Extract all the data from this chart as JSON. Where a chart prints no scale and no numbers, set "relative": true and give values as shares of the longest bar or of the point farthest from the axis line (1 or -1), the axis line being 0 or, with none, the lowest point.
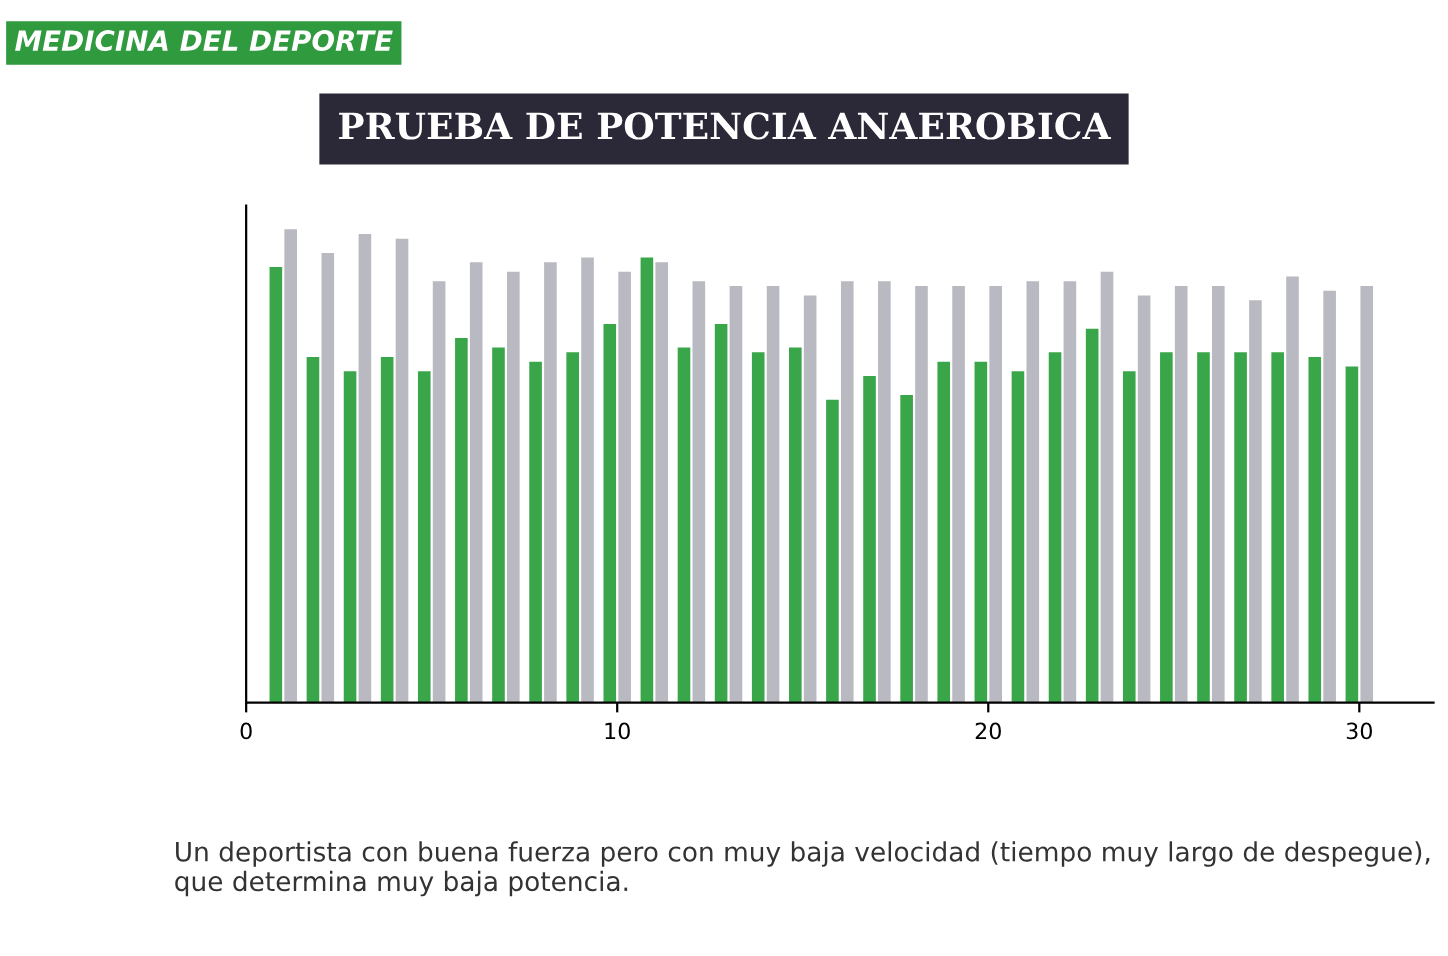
{
  "chart_data": {
    "type": "bar",
    "title": "PRUEBA DE POTENCIA ANAEROBICA",
    "subtitle": "MEDICINA DEL DEPORTE",
    "annotations": [
      "Un deportista con buena fuerza pero con muy baja velocidad (tiempo muy largo de despegue), que determina muy baja potencia."
    ],
    "relative": true,
    "x": [
      1,
      2,
      3,
      4,
      5,
      6,
      7,
      8,
      9,
      10,
      11,
      12,
      13,
      14,
      15,
      16,
      17,
      18,
      19,
      20,
      21,
      22,
      23,
      24,
      25,
      26,
      27,
      28,
      29,
      30
    ],
    "xlim": [
      0,
      32
    ],
    "xticks": [
      0,
      10,
      20,
      30
    ],
    "series": [
      {
        "color": "#3aa64a",
        "values": [
          0.92,
          0.73,
          0.7,
          0.73,
          0.7,
          0.77,
          0.75,
          0.72,
          0.74,
          0.8,
          0.94,
          0.75,
          0.8,
          0.74,
          0.75,
          0.64,
          0.69,
          0.65,
          0.72,
          0.72,
          0.7,
          0.74,
          0.79,
          0.7,
          0.74,
          0.74,
          0.74,
          0.74,
          0.73,
          0.71
        ]
      },
      {
        "color": "#b9b9c2",
        "values": [
          1.0,
          0.95,
          0.99,
          0.98,
          0.89,
          0.93,
          0.91,
          0.93,
          0.94,
          0.91,
          0.93,
          0.89,
          0.88,
          0.88,
          0.86,
          0.89,
          0.89,
          0.88,
          0.88,
          0.88,
          0.89,
          0.89,
          0.91,
          0.86,
          0.88,
          0.88,
          0.85,
          0.9,
          0.87,
          0.88
        ]
      }
    ],
    "grid": false,
    "legend": false
  }
}
